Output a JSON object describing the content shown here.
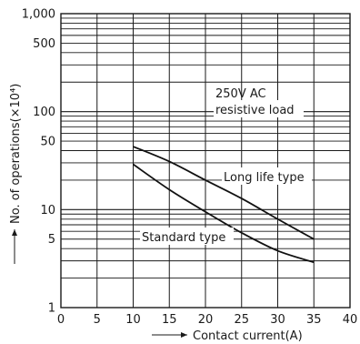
{
  "chart_data": {
    "type": "line",
    "xlabel": "Contact current(A)",
    "ylabel": "No. of operations(×10⁴)",
    "xlim": [
      0,
      40
    ],
    "ylim": [
      1,
      1000
    ],
    "yscale": "log",
    "grid": true,
    "x_ticks": [
      0,
      5,
      10,
      15,
      20,
      25,
      30,
      35,
      40
    ],
    "x_tick_labels": [
      "0",
      "5",
      "10",
      "15",
      "20",
      "25",
      "30",
      "35",
      "40"
    ],
    "y_tick_values": [
      1,
      5,
      10,
      50,
      100,
      500,
      1000
    ],
    "y_tick_labels": [
      "1",
      "5",
      "10",
      "50",
      "100",
      "500",
      "1,000"
    ],
    "series": [
      {
        "name": "Long life type",
        "x": [
          10,
          15,
          20,
          25,
          30,
          35
        ],
        "y": [
          44,
          31,
          20,
          13,
          8,
          5
        ]
      },
      {
        "name": "Standard type",
        "x": [
          10,
          15,
          20,
          25,
          30,
          35
        ],
        "y": [
          29,
          16,
          9.5,
          5.8,
          3.8,
          2.9
        ]
      }
    ],
    "annotations": [
      {
        "text": "250V AC",
        "x": 23,
        "y": 140
      },
      {
        "text": "resistive load",
        "x": 23,
        "y": 90
      }
    ]
  }
}
